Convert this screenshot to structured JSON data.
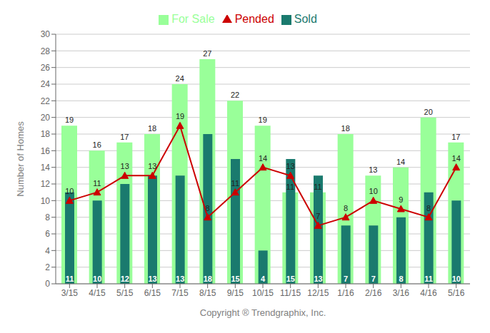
{
  "chart_data": {
    "type": "bar",
    "x_label": "Copyright ® Trendgraphix, Inc.",
    "y_label": "Number of Homes",
    "categories": [
      "3/15",
      "4/15",
      "5/15",
      "6/15",
      "7/15",
      "8/15",
      "9/15",
      "10/15",
      "11/15",
      "12/15",
      "1/16",
      "2/16",
      "3/16",
      "4/16",
      "5/16"
    ],
    "series": [
      {
        "name": "For Sale",
        "color": "#99FF99",
        "values": [
          19,
          16,
          17,
          18,
          24,
          27,
          22,
          19,
          11,
          11,
          18,
          13,
          14,
          20,
          17
        ]
      },
      {
        "name": "Sold",
        "color": "#1a7a6e",
        "values": [
          11,
          10,
          12,
          13,
          13,
          18,
          15,
          4,
          15,
          13,
          7,
          7,
          8,
          11,
          10
        ]
      },
      {
        "name": "Pended",
        "type": "line",
        "color": "#CC0000",
        "marker": "triangle",
        "values": [
          10,
          11,
          13,
          13,
          19,
          8,
          11,
          14,
          13,
          7,
          8,
          10,
          9,
          8,
          14
        ]
      }
    ],
    "ylim": [
      0,
      30
    ],
    "yticks": [
      0,
      2,
      4,
      6,
      8,
      10,
      12,
      14,
      16,
      18,
      20,
      22,
      24,
      26,
      28,
      30
    ],
    "grid": true,
    "legend": "top",
    "data_labels": true
  }
}
